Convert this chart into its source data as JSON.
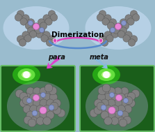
{
  "bg_color": "#9abcce",
  "title_text": "Dimerization",
  "para_text": "para",
  "meta_text": "meta",
  "fig_width": 2.23,
  "fig_height": 1.89,
  "dpi": 100,
  "sphere_color": "#808080",
  "sphere_edge": "#505050",
  "pink_color": "#e888d8",
  "pink_edge": "#c060b0",
  "blue_color": "#8898cc",
  "blue_edge": "#6070aa",
  "green_bg": "#1a5e1a",
  "green_glow1": "#44cc22",
  "green_glow2": "#aaf066",
  "panel_edge": "#66bb66",
  "arrow_para_color": "#dd44cc",
  "arrow_meta_color": "#88bbdd",
  "arc_blue": "#5588cc",
  "arc_pink": "#dd44bb",
  "halo_color": "#c0d8ee"
}
